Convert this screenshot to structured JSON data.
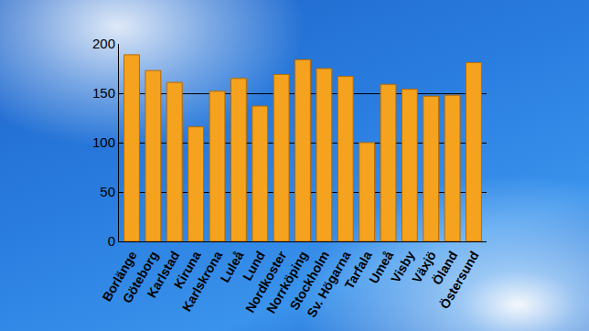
{
  "chart_data": {
    "type": "bar",
    "categories": [
      "Borlänge",
      "Göteborg",
      "Karlstad",
      "Kiruna",
      "Karlskrona",
      "Luleå",
      "Lund",
      "Nordkoster",
      "Norrköping",
      "Stockholm",
      "Sv. Högarna",
      "Tarfala",
      "Umeå",
      "Visby",
      "Växjö",
      "Öland",
      "Östersund"
    ],
    "values": [
      189,
      173,
      161,
      116,
      152,
      165,
      137,
      169,
      184,
      175,
      167,
      100,
      159,
      154,
      147,
      148,
      181
    ],
    "color": "#f5a21e",
    "ylim": [
      0,
      200
    ],
    "yticks": [
      0,
      50,
      100,
      150,
      200
    ],
    "grid": true
  }
}
